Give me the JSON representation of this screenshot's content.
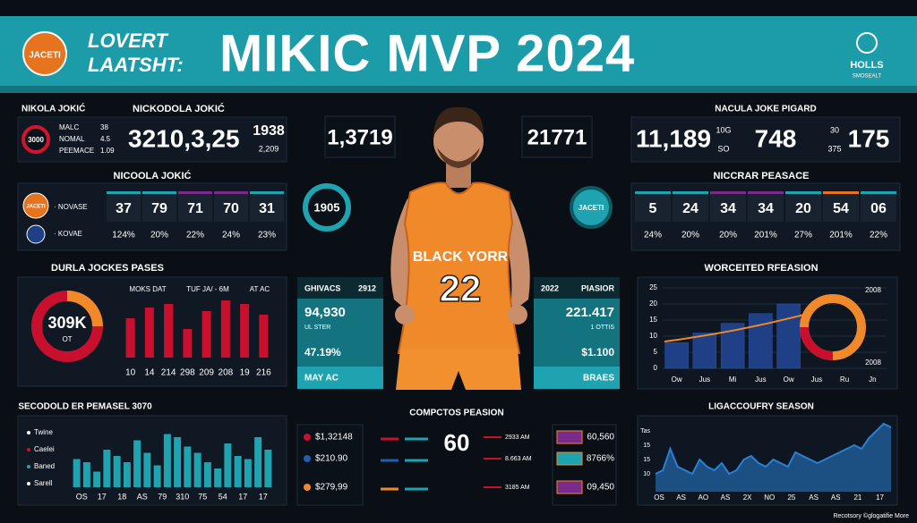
{
  "header": {
    "logo": "JACETI",
    "brand": [
      "LOVERT",
      "LAATSHT:"
    ],
    "title": "MIKIC MVP 2024",
    "right_logo": "HOLLS",
    "right_logo_sub": "SMOSEALT"
  },
  "top_left": {
    "label": "NIKOLA JOKIĆ",
    "name": "NICKODOLA JOKIĆ",
    "ring": "3000",
    "rows": [
      [
        "MALC",
        "38"
      ],
      [
        "NOMAL",
        "4.5"
      ],
      [
        "PEEMACE",
        "1.09"
      ]
    ],
    "total": "3210,3,25",
    "side": "1938",
    "side_sub": "2,209"
  },
  "top_center": {
    "left": "1,3719",
    "right": "21771",
    "ring": "1905",
    "logo": "JACETI"
  },
  "top_right": {
    "title": "NACULA JOKE PIGARD",
    "a": "11,189",
    "a_sub": [
      "10G",
      "SO"
    ],
    "b": "748",
    "b_sub": [
      "30",
      "375"
    ],
    "c": "175"
  },
  "stats_left": {
    "title": "NICOOLA JOKIĆ",
    "logo": "JACETI",
    "rows": [
      "· NOVASE",
      "· KOVAE"
    ],
    "values": [
      "37",
      "79",
      "71",
      "70",
      "31"
    ],
    "percents": [
      "124%",
      "20%",
      "22%",
      "24%",
      "23%"
    ]
  },
  "stats_right": {
    "title": "NICCRAR PEASACE",
    "values": [
      "5",
      "24",
      "34",
      "34",
      "20",
      "54",
      "06"
    ],
    "percents": [
      "24%",
      "20%",
      "20%",
      "201%",
      "27%",
      "201%",
      "22%"
    ]
  },
  "passes": {
    "title": "DURLA JOCKES PASES",
    "donut": "309K",
    "donut_sub": "OT",
    "labels": [
      "MOKS DAT",
      "TUF JA/ - 6M",
      "AT AC"
    ]
  },
  "center_left": {
    "head": [
      "GHIVACS",
      "2912"
    ],
    "value": "94,930",
    "sub": "UL STER",
    "pct": "47.19%",
    "foot": "MAY AC"
  },
  "center_right": {
    "head": [
      "2022",
      "PIASIOR"
    ],
    "value": "221.417",
    "sub": "1 OTTIS",
    "amount": "$1.100",
    "foot": "BRAES"
  },
  "player": {
    "jersey": "BLACK YORR",
    "number": "22"
  },
  "comparison": {
    "title": "COMPCTOS PEASION",
    "left": [
      "$1,32148",
      "$210.90",
      "$279,99"
    ],
    "center": "60",
    "times": [
      "2933 AM",
      "8.663 AM",
      "3185 AM"
    ],
    "right": [
      "60,560",
      "8766%",
      "09,450"
    ]
  },
  "chart_data": [
    {
      "type": "bar",
      "categories": [
        "10",
        "14",
        "214",
        "298",
        "209",
        "208",
        "19",
        "216"
      ],
      "values": [
        55,
        70,
        75,
        40,
        65,
        80,
        75,
        60
      ],
      "color": "#c8102e"
    },
    {
      "type": "bar",
      "title": "WORCEITED RFEASION",
      "categories": [
        "Ow",
        "Jus",
        "Mi",
        "Jus",
        "Ow",
        "Jus",
        "Ru",
        "Jn"
      ],
      "values": [
        8,
        11,
        14,
        17,
        20,
        null,
        null,
        null
      ],
      "color": "#1f3f86",
      "ylim": [
        0,
        25
      ],
      "yticks": [
        0,
        5,
        10,
        15,
        20,
        25
      ],
      "grid": true,
      "ring_labels": [
        "2008",
        "2008"
      ]
    },
    {
      "type": "bar",
      "title": "SECODOLD ER PEMASEL 3070",
      "legend": [
        "Twine",
        "Caelei",
        "Baned",
        "Sarell"
      ],
      "categories": [
        "OS",
        null,
        "17",
        null,
        "18",
        null,
        "AS",
        null,
        "79",
        null,
        "310",
        null,
        "75",
        null,
        "54",
        null,
        "17",
        null,
        "17",
        null
      ],
      "values": [
        45,
        40,
        25,
        60,
        50,
        40,
        75,
        55,
        35,
        85,
        80,
        65,
        55,
        40,
        30,
        70,
        50,
        45,
        80,
        60
      ],
      "color": "#1fa3b0"
    },
    {
      "type": "area",
      "title": "LIGACCOUFRY SEASON",
      "y_labels": [
        "Tas",
        "15",
        "15",
        "10"
      ],
      "categories": [
        "OS",
        null,
        null,
        "AS",
        null,
        null,
        "AO",
        null,
        null,
        "AS",
        null,
        null,
        "2X",
        null,
        null,
        "NO",
        null,
        null,
        "25",
        null,
        null,
        "AS",
        null,
        null,
        "AS",
        null,
        null,
        "21",
        null,
        null,
        "17",
        null,
        null
      ],
      "values": [
        5,
        6,
        12,
        7,
        6,
        5,
        9,
        7,
        6,
        8,
        5,
        6,
        9,
        10,
        8,
        7,
        9,
        8,
        7,
        11,
        10,
        9,
        8,
        9,
        10,
        11,
        12,
        13,
        12,
        15,
        17,
        19,
        18
      ],
      "color": "#2a7fd4"
    }
  ],
  "footer": "Recotsory ©glogatifie More"
}
